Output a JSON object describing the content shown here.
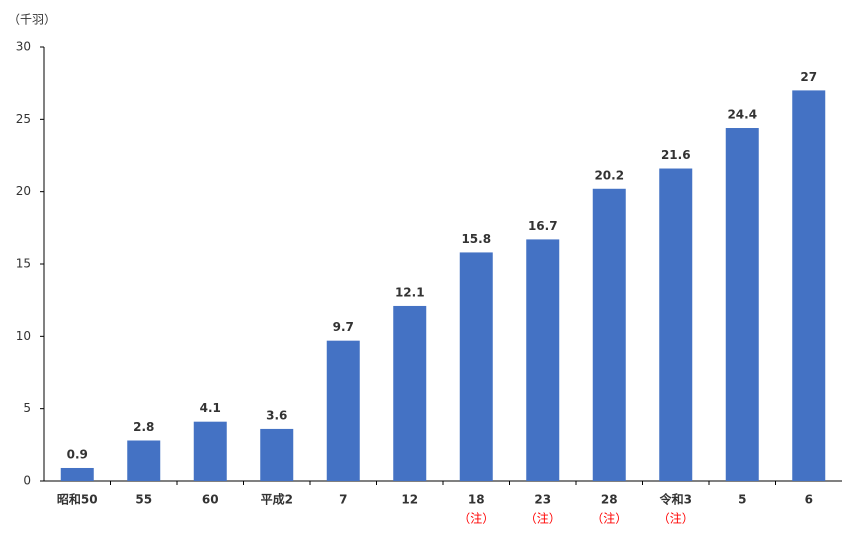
{
  "chart_data": {
    "type": "bar",
    "unit_label": "（千羽）",
    "categories": [
      "昭和50",
      "55",
      "60",
      "平成2",
      "7",
      "12",
      "18",
      "23",
      "28",
      "令和3",
      "5",
      "6"
    ],
    "category_notes": [
      null,
      null,
      null,
      null,
      null,
      null,
      "（注）",
      "（注）",
      "（注）",
      "（注）",
      null,
      null
    ],
    "note_color": "#ff0000",
    "values": [
      0.9,
      2.8,
      4.1,
      3.6,
      9.7,
      12.1,
      15.8,
      16.7,
      20.2,
      21.6,
      24.4,
      27
    ],
    "color": "#4472c4",
    "ylim": [
      0,
      30
    ],
    "yticks": [
      0,
      5,
      10,
      15,
      20,
      25,
      30
    ],
    "grid": false
  }
}
